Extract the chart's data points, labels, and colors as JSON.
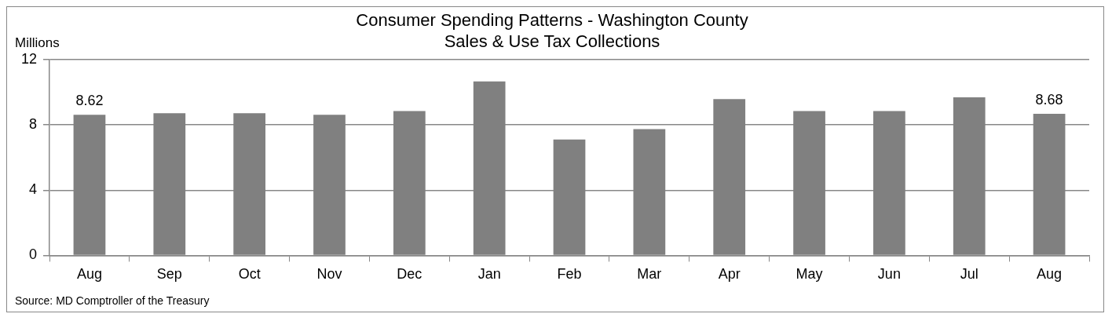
{
  "chart_data": {
    "type": "bar",
    "title": [
      "Consumer Spending Patterns - Washington County",
      "Sales & Use Tax Collections"
    ],
    "ylabel": "Millions",
    "categories": [
      "Aug",
      "Sep",
      "Oct",
      "Nov",
      "Dec",
      "Jan",
      "Feb",
      "Mar",
      "Apr",
      "May",
      "Jun",
      "Jul",
      "Aug"
    ],
    "values": [
      8.62,
      8.72,
      8.72,
      8.62,
      8.85,
      10.67,
      7.11,
      7.74,
      9.58,
      8.85,
      8.85,
      9.69,
      8.68
    ],
    "value_labels": [
      "8.62",
      null,
      null,
      null,
      null,
      null,
      null,
      null,
      null,
      null,
      null,
      null,
      "8.68"
    ],
    "color": "#808080",
    "ylim": [
      0,
      12
    ],
    "yticks": [
      0,
      4,
      8,
      12
    ],
    "grid": "y",
    "legend": false,
    "annotations": [
      "Source: MD Comptroller of the Treasury"
    ]
  }
}
